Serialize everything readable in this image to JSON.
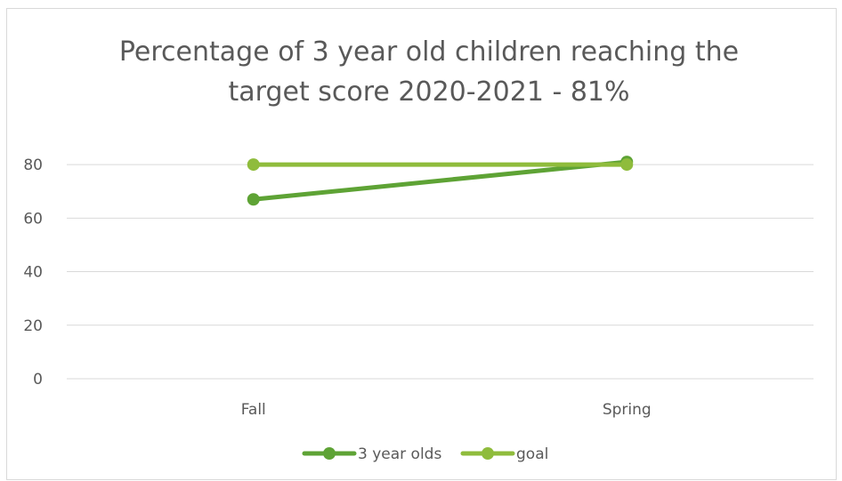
{
  "chart_data": {
    "type": "line",
    "title_lines": [
      "Percentage of 3 year old children reaching the",
      "target score 2020-2021 - 81%"
    ],
    "categories": [
      "Fall",
      "Spring"
    ],
    "series": [
      {
        "name": "3 year olds",
        "values": [
          67,
          81
        ],
        "color": "#5ea335"
      },
      {
        "name": "goal",
        "values": [
          80,
          80
        ],
        "color": "#8fbc3c"
      }
    ],
    "y_ticks": [
      0,
      20,
      40,
      60,
      80
    ],
    "ylim": [
      0,
      90
    ],
    "grid": true,
    "legend_position": "bottom"
  }
}
